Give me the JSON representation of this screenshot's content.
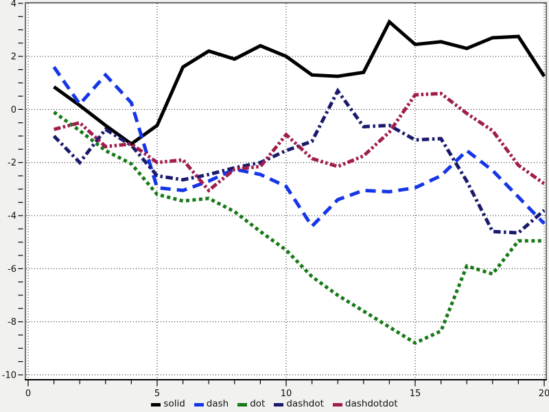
{
  "chart_data": {
    "type": "line",
    "title": "",
    "xlabel": "",
    "ylabel": "",
    "xlim": [
      0,
      20
    ],
    "ylim": [
      -10,
      4
    ],
    "grid": "dotted",
    "x_ticks_major": [
      0,
      5,
      10,
      15,
      20
    ],
    "x_tick_labels": [
      "0",
      "5",
      "10",
      "15",
      "20"
    ],
    "x_tick_minor_step": 1,
    "y_ticks_major": [
      4,
      2,
      0,
      -2,
      -4,
      -6,
      -8,
      -10
    ],
    "y_tick_labels": [
      "4",
      "2",
      "0",
      "-2",
      "-4",
      "-6",
      "-8",
      "-10"
    ],
    "y_tick_minor_step": 0.5,
    "legend_position": "bottom-center",
    "x": [
      1,
      2,
      3,
      4,
      5,
      6,
      7,
      8,
      9,
      10,
      11,
      12,
      13,
      14,
      15,
      16,
      17,
      18,
      19,
      20
    ],
    "series": [
      {
        "name": "solid",
        "color": "#000000",
        "dash": [],
        "values": [
          0.85,
          0.15,
          -0.6,
          -1.3,
          -0.6,
          1.6,
          2.2,
          1.9,
          2.4,
          2.0,
          1.3,
          1.25,
          1.4,
          3.3,
          2.45,
          2.55,
          2.3,
          2.7,
          2.75,
          1.25
        ]
      },
      {
        "name": "dash",
        "color": "#1535e8",
        "dash": [
          15,
          9
        ],
        "values": [
          1.6,
          0.2,
          1.3,
          0.25,
          -2.95,
          -3.05,
          -2.7,
          -2.25,
          -2.45,
          -2.9,
          -4.4,
          -3.4,
          -3.05,
          -3.1,
          -2.95,
          -2.5,
          -1.55,
          -2.3,
          -3.3,
          -4.3
        ]
      },
      {
        "name": "dot",
        "color": "#177917",
        "dash": [
          5,
          4.5
        ],
        "values": [
          -0.1,
          -0.8,
          -1.55,
          -2.05,
          -3.2,
          -3.45,
          -3.35,
          -3.85,
          -4.6,
          -5.3,
          -6.3,
          -7.0,
          -7.6,
          -8.2,
          -8.8,
          -8.35,
          -5.9,
          -6.2,
          -4.95,
          -4.95
        ]
      },
      {
        "name": "dashdot",
        "color": "#1a1a6d",
        "dash": [
          10.5,
          4.5,
          3.5,
          4.5
        ],
        "values": [
          -1.0,
          -2.0,
          -0.75,
          -1.35,
          -2.5,
          -2.65,
          -2.45,
          -2.2,
          -2.0,
          -1.55,
          -1.2,
          0.7,
          -0.65,
          -0.6,
          -1.15,
          -1.1,
          -2.7,
          -4.6,
          -4.65,
          -3.8
        ]
      },
      {
        "name": "dashdotdot",
        "color": "#a01d4d",
        "dash": [
          10,
          3.5,
          3.5,
          3.5,
          3.5,
          3.5
        ],
        "values": [
          -0.75,
          -0.5,
          -1.4,
          -1.3,
          -2.0,
          -1.9,
          -3.05,
          -2.25,
          -2.15,
          -0.95,
          -1.85,
          -2.15,
          -1.75,
          -0.85,
          0.55,
          0.6,
          -0.15,
          -0.8,
          -2.1,
          -2.8
        ]
      }
    ],
    "style": {
      "outer_background": "#f1f1ef",
      "plot_background": "#ffffff",
      "frame_color": "#6f6f6f",
      "axis_color": "#000000",
      "grid_color": "#000000",
      "tick_label_color": "#111111",
      "line_width": 5
    }
  }
}
